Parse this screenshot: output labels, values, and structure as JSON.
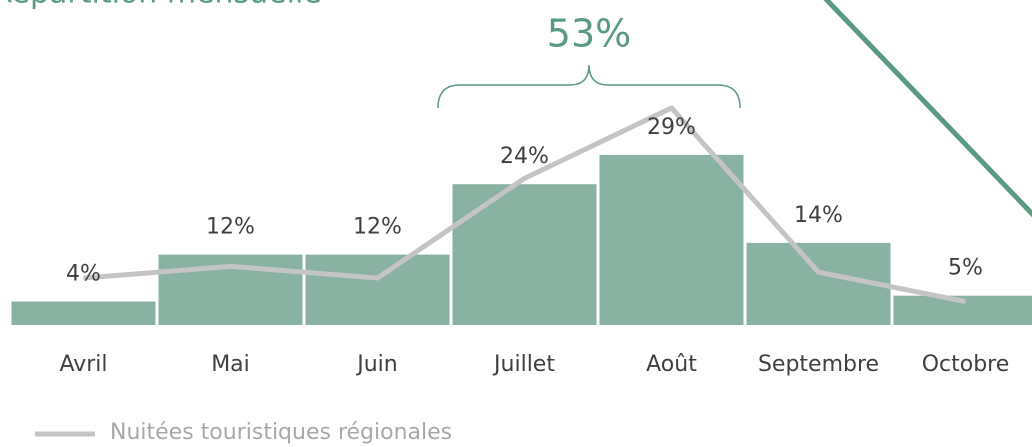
{
  "chart_data": {
    "type": "bar",
    "title": "Répartition mensuelle",
    "annotation": "53%",
    "categories": [
      "Avril",
      "Mai",
      "Juin",
      "Juillet",
      "Août",
      "Septembre",
      "Octobre"
    ],
    "ylim": [
      0,
      30
    ],
    "series": [
      {
        "type": "bar",
        "color": "#8ab2a3",
        "values": [
          4,
          12,
          12,
          24,
          29,
          14,
          5
        ],
        "value_labels": [
          "4%",
          "12%",
          "12%",
          "24%",
          "29%",
          "14%",
          "5%"
        ]
      },
      {
        "type": "line",
        "name": "Nuitées touristiques régionales",
        "color": "#c4c4c4",
        "values": [
          8,
          10,
          8,
          25,
          37,
          9,
          4
        ]
      }
    ]
  }
}
